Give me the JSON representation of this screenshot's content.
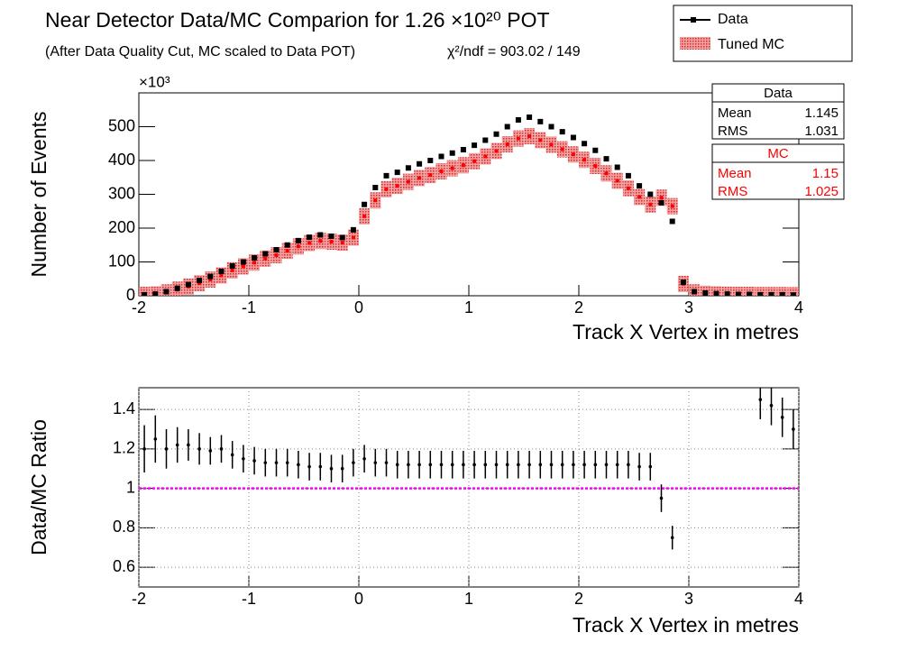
{
  "chart_data": [
    {
      "type": "scatter",
      "title": "Near Detector Data/MC Comparion for 1.26 ×10²⁰ POT",
      "subtitle": "(After Data Quality Cut, MC scaled to Data POT)",
      "annotation": "χ²/ndf = 903.02 / 149",
      "y_multiplier": "×10³",
      "x_label": "Track X Vertex in metres",
      "y_label": "Number of Events",
      "x": [
        -1.95,
        -1.85,
        -1.75,
        -1.65,
        -1.55,
        -1.45,
        -1.35,
        -1.25,
        -1.15,
        -1.05,
        -0.95,
        -0.85,
        -0.75,
        -0.65,
        -0.55,
        -0.45,
        -0.35,
        -0.25,
        -0.15,
        -0.05,
        0.05,
        0.15,
        0.25,
        0.35,
        0.45,
        0.55,
        0.65,
        0.75,
        0.85,
        0.95,
        1.05,
        1.15,
        1.25,
        1.35,
        1.45,
        1.55,
        1.65,
        1.75,
        1.85,
        1.95,
        2.05,
        2.15,
        2.25,
        2.35,
        2.45,
        2.55,
        2.65,
        2.75,
        2.85,
        2.95,
        3.05,
        3.15,
        3.25,
        3.35,
        3.45,
        3.55,
        3.65,
        3.75,
        3.85,
        3.95
      ],
      "series": [
        {
          "name": "Data",
          "color": "#000000",
          "values": [
            3,
            5,
            12,
            22,
            33,
            45,
            57,
            72,
            88,
            100,
            112,
            124,
            136,
            150,
            163,
            173,
            180,
            176,
            172,
            195,
            270,
            320,
            355,
            365,
            378,
            390,
            400,
            412,
            422,
            432,
            445,
            460,
            478,
            500,
            520,
            528,
            515,
            500,
            485,
            468,
            450,
            430,
            405,
            380,
            355,
            325,
            300,
            275,
            220,
            40,
            12,
            8,
            6,
            5,
            4,
            4,
            3,
            3,
            3,
            2
          ]
        },
        {
          "name": "Tuned MC",
          "color": "#ff0000",
          "values": [
            2.5,
            4,
            10,
            18,
            27,
            37,
            48,
            60,
            75,
            87,
            98,
            110,
            120,
            133,
            146,
            156,
            162,
            160,
            157,
            172,
            235,
            282,
            315,
            325,
            337,
            348,
            357,
            368,
            377,
            386,
            398,
            412,
            428,
            448,
            465,
            472,
            460,
            447,
            433,
            418,
            402,
            384,
            362,
            340,
            318,
            292,
            270,
            290,
            265,
            35,
            10,
            6,
            4,
            3,
            2.5,
            2.5,
            2,
            2,
            2,
            1.5
          ]
        }
      ],
      "xlim": [
        -2,
        4
      ],
      "xticks": [
        -2,
        -1,
        0,
        1,
        2,
        3,
        4
      ],
      "ylim": [
        0,
        600
      ],
      "yticks": [
        0,
        100,
        200,
        300,
        400,
        500
      ],
      "legend": "top-right",
      "stats": [
        {
          "title": "Data",
          "color": "#000000",
          "rows": [
            [
              "Mean",
              "1.145"
            ],
            [
              "RMS",
              "1.031"
            ]
          ]
        },
        {
          "title": "MC",
          "color": "#ff0000",
          "rows": [
            [
              "Mean",
              "1.15"
            ],
            [
              "RMS",
              "1.025"
            ]
          ]
        }
      ]
    },
    {
      "type": "errorbar",
      "x_label": "Track X Vertex in metres",
      "y_label": "Data/MC Ratio",
      "x": [
        -1.95,
        -1.85,
        -1.75,
        -1.65,
        -1.55,
        -1.45,
        -1.35,
        -1.25,
        -1.15,
        -1.05,
        -0.95,
        -0.85,
        -0.75,
        -0.65,
        -0.55,
        -0.45,
        -0.35,
        -0.25,
        -0.15,
        -0.05,
        0.05,
        0.15,
        0.25,
        0.35,
        0.45,
        0.55,
        0.65,
        0.75,
        0.85,
        0.95,
        1.05,
        1.15,
        1.25,
        1.35,
        1.45,
        1.55,
        1.65,
        1.75,
        1.85,
        1.95,
        2.05,
        2.15,
        2.25,
        2.35,
        2.45,
        2.55,
        2.65,
        2.75,
        2.85,
        2.95,
        3.05,
        3.15,
        3.25,
        3.35,
        3.45,
        3.55,
        3.65,
        3.75,
        3.85,
        3.95
      ],
      "values": [
        1.2,
        1.25,
        1.2,
        1.22,
        1.22,
        1.2,
        1.19,
        1.2,
        1.17,
        1.15,
        1.14,
        1.13,
        1.13,
        1.13,
        1.12,
        1.11,
        1.11,
        1.1,
        1.1,
        1.13,
        1.15,
        1.13,
        1.13,
        1.12,
        1.12,
        1.12,
        1.12,
        1.12,
        1.12,
        1.12,
        1.12,
        1.12,
        1.12,
        1.12,
        1.12,
        1.12,
        1.12,
        1.12,
        1.12,
        1.12,
        1.12,
        1.12,
        1.12,
        1.12,
        1.12,
        1.11,
        1.11,
        0.95,
        0.75,
        null,
        null,
        null,
        null,
        null,
        null,
        null,
        1.45,
        1.42,
        1.36,
        1.3
      ],
      "errors": [
        0.12,
        0.12,
        0.1,
        0.09,
        0.08,
        0.08,
        0.07,
        0.07,
        0.07,
        0.07,
        0.07,
        0.07,
        0.07,
        0.07,
        0.07,
        0.07,
        0.07,
        0.07,
        0.07,
        0.07,
        0.07,
        0.07,
        0.07,
        0.07,
        0.07,
        0.07,
        0.07,
        0.07,
        0.07,
        0.07,
        0.07,
        0.07,
        0.07,
        0.07,
        0.07,
        0.07,
        0.07,
        0.07,
        0.07,
        0.07,
        0.07,
        0.07,
        0.07,
        0.07,
        0.07,
        0.07,
        0.07,
        0.07,
        0.06,
        null,
        null,
        null,
        null,
        null,
        null,
        null,
        0.1,
        0.1,
        0.1,
        0.1
      ],
      "color": "#000000",
      "reference_line": {
        "value": 1,
        "color": "#ff00ff"
      },
      "xlim": [
        -2,
        4
      ],
      "xticks": [
        -2,
        -1,
        0,
        1,
        2,
        3,
        4
      ],
      "ylim": [
        0.5,
        1.51
      ],
      "yticks": [
        0.6,
        0.8,
        1,
        1.2,
        1.4
      ],
      "grid": true
    }
  ]
}
